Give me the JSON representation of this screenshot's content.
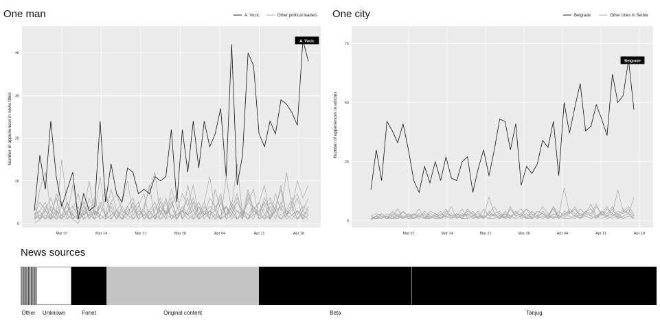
{
  "chart_data": [
    {
      "type": "line",
      "title": "One man",
      "xlabel": "",
      "ylabel": "Number of apperiences in news titles",
      "ylim": [
        0,
        45
      ],
      "yticks": [
        0,
        10,
        20,
        30,
        40
      ],
      "xticks": [
        "Mar 07",
        "Mar 14",
        "Mar 21",
        "Mar 28",
        "Apr 04",
        "Apr 11",
        "Apr 18"
      ],
      "legend": [
        "A. Vucic",
        "Other political leaders"
      ],
      "highlight_label": "A. Vucic",
      "series": [
        {
          "name": "A. Vucic",
          "values": [
            3,
            16,
            8,
            24,
            11,
            4,
            8,
            12,
            1,
            7,
            3,
            4,
            24,
            5,
            14,
            7,
            5,
            13,
            12,
            7,
            8,
            7,
            11,
            10,
            11,
            22,
            5,
            22,
            12,
            24,
            13,
            24,
            18,
            21,
            27,
            11,
            42,
            9,
            16,
            40,
            37,
            21,
            18,
            24,
            21,
            29,
            28,
            26,
            23,
            43,
            38
          ]
        },
        {
          "name": "Other political leaders",
          "values": [
            1,
            8,
            12,
            3,
            2,
            15,
            4,
            1,
            0,
            3,
            10,
            2,
            11,
            1,
            5,
            7,
            3,
            2,
            5,
            1,
            4,
            8,
            12,
            2,
            6,
            1,
            3,
            7,
            4,
            9,
            2,
            5,
            11,
            3,
            6,
            1,
            4,
            14,
            2,
            8,
            3,
            5,
            9,
            1,
            7,
            3,
            12,
            4,
            10,
            6,
            9
          ]
        },
        {
          "name": "Other political leaders",
          "values": [
            2,
            3,
            5,
            1,
            7,
            4,
            2,
            9,
            3,
            1,
            6,
            2,
            4,
            8,
            1,
            3,
            5,
            10,
            2,
            4,
            7,
            1,
            3,
            6,
            2,
            8,
            4,
            1,
            9,
            3,
            5,
            2,
            6,
            4,
            1,
            11,
            3,
            7,
            2,
            5,
            8,
            1,
            4,
            6,
            3,
            9,
            2,
            5,
            7,
            3,
            6
          ]
        },
        {
          "name": "Other political leaders",
          "values": [
            4,
            1,
            3,
            6,
            2,
            5,
            1,
            3,
            7,
            2,
            4,
            1,
            5,
            2,
            8,
            3,
            1,
            4,
            6,
            2,
            3,
            9,
            1,
            5,
            2,
            4,
            7,
            1,
            3,
            6,
            2,
            5,
            1,
            8,
            3,
            4,
            2,
            6,
            1,
            7,
            3,
            2,
            5,
            1,
            4,
            8,
            2,
            3,
            6,
            1,
            4
          ]
        },
        {
          "name": "Other political leaders",
          "values": [
            1,
            2,
            1,
            4,
            3,
            1,
            5,
            2,
            1,
            3,
            2,
            6,
            1,
            2,
            4,
            1,
            3,
            2,
            5,
            1,
            2,
            3,
            1,
            4,
            2,
            6,
            1,
            3,
            2,
            5,
            1,
            4,
            2,
            3,
            7,
            1,
            2,
            5,
            3,
            1,
            4,
            2,
            6,
            3,
            1,
            5,
            2,
            4,
            1,
            3,
            2
          ]
        },
        {
          "name": "Other political leaders",
          "values": [
            2,
            5,
            3,
            2,
            6,
            1,
            3,
            4,
            2,
            5,
            1,
            3,
            2,
            6,
            3,
            1,
            4,
            2,
            3,
            5,
            1,
            2,
            4,
            3,
            1,
            5,
            2,
            3,
            6,
            1,
            4,
            2,
            3,
            1,
            5,
            2,
            4,
            3,
            1,
            6,
            2,
            3,
            5,
            1,
            4,
            2,
            3,
            6,
            2,
            4,
            3
          ]
        },
        {
          "name": "Other political leaders",
          "values": [
            0,
            1,
            2,
            1,
            3,
            2,
            1,
            2,
            4,
            1,
            2,
            3,
            1,
            2,
            1,
            3,
            2,
            4,
            1,
            2,
            3,
            1,
            2,
            1,
            3,
            2,
            1,
            4,
            2,
            3,
            1,
            2,
            3,
            1,
            2,
            4,
            1,
            3,
            2,
            1,
            2,
            3,
            1,
            4,
            2,
            1,
            3,
            2,
            1,
            2,
            3
          ]
        },
        {
          "name": "Other political leaders",
          "values": [
            1,
            3,
            1,
            2,
            1,
            4,
            2,
            1,
            3,
            1,
            2,
            1,
            4,
            2,
            1,
            3,
            2,
            1,
            2,
            4,
            1,
            3,
            1,
            2,
            5,
            1,
            2,
            3,
            1,
            2,
            4,
            1,
            3,
            2,
            1,
            4,
            2,
            1,
            3,
            2,
            1,
            5,
            2,
            1,
            3,
            4,
            1,
            2,
            3,
            1,
            2
          ]
        },
        {
          "name": "Other political leaders",
          "values": [
            2,
            1,
            4,
            3,
            1,
            2,
            5,
            1,
            2,
            4,
            1,
            3,
            2,
            1,
            5,
            2,
            1,
            3,
            4,
            1,
            2,
            3,
            5,
            1,
            2,
            4,
            1,
            3,
            2,
            5,
            1,
            2,
            4,
            3,
            1,
            2,
            5,
            1,
            3,
            2,
            4,
            1,
            2,
            5,
            3,
            1,
            2,
            4,
            1,
            3,
            2
          ]
        },
        {
          "name": "Other political leaders",
          "values": [
            1,
            2,
            3,
            1,
            2,
            1,
            3,
            2,
            1,
            2,
            3,
            1,
            2,
            1,
            2,
            3,
            1,
            2,
            1,
            3,
            2,
            1,
            2,
            3,
            1,
            2,
            1,
            3,
            2,
            1,
            2,
            3,
            1,
            2,
            1,
            2,
            3,
            1,
            2,
            1,
            3,
            2,
            1,
            2,
            3,
            1,
            2,
            1,
            3,
            2,
            1
          ]
        }
      ]
    },
    {
      "type": "line",
      "title": "One city",
      "xlabel": "",
      "ylabel": "Number of apperiences in articles",
      "ylim": [
        0,
        80
      ],
      "yticks": [
        0,
        25,
        50,
        75
      ],
      "xticks": [
        "Mar 07",
        "Mar 14",
        "Mar 21",
        "Mar 28",
        "Apr 04",
        "Apr 11",
        "Apr 18"
      ],
      "legend": [
        "Belgrade",
        "Other cities in Serbia"
      ],
      "highlight_label": "Belgrade",
      "series": [
        {
          "name": "Belgrade",
          "values": [
            13,
            30,
            17,
            42,
            38,
            33,
            41,
            30,
            17,
            12,
            23,
            16,
            25,
            17,
            27,
            18,
            17,
            25,
            27,
            12,
            22,
            30,
            19,
            30,
            43,
            42,
            30,
            41,
            15,
            23,
            20,
            24,
            34,
            31,
            42,
            19,
            50,
            37,
            48,
            58,
            38,
            40,
            49,
            43,
            36,
            62,
            50,
            53,
            68,
            47
          ]
        },
        {
          "name": "Other cities in Serbia",
          "values": [
            1,
            2,
            1,
            3,
            2,
            1,
            4,
            2,
            1,
            3,
            2,
            1,
            2,
            4,
            1,
            3,
            2,
            5,
            1,
            2,
            3,
            1,
            4,
            2,
            3,
            1,
            5,
            2,
            3,
            1,
            4,
            2,
            6,
            3,
            1,
            4,
            2,
            5,
            3,
            1,
            4,
            2,
            6,
            3,
            2,
            5,
            1,
            4,
            3,
            2
          ]
        },
        {
          "name": "Other cities in Serbia",
          "values": [
            2,
            1,
            3,
            1,
            4,
            2,
            1,
            3,
            2,
            5,
            1,
            3,
            2,
            1,
            4,
            2,
            3,
            1,
            5,
            2,
            4,
            1,
            3,
            6,
            2,
            3,
            1,
            4,
            2,
            5,
            3,
            1,
            4,
            2,
            6,
            1,
            3,
            4,
            2,
            5,
            3,
            7,
            2,
            4,
            3,
            6,
            2,
            5,
            3,
            10
          ]
        },
        {
          "name": "Other cities in Serbia",
          "values": [
            1,
            1,
            2,
            1,
            1,
            2,
            1,
            3,
            1,
            2,
            1,
            1,
            3,
            1,
            2,
            1,
            2,
            1,
            3,
            1,
            2,
            2,
            1,
            3,
            1,
            2,
            1,
            4,
            1,
            2,
            3,
            1,
            2,
            1,
            3,
            2,
            1,
            4,
            2,
            1,
            3,
            2,
            1,
            4,
            2,
            3,
            1,
            2,
            3,
            1
          ]
        },
        {
          "name": "Other cities in Serbia",
          "values": [
            0,
            2,
            3,
            1,
            2,
            5,
            1,
            2,
            3,
            1,
            4,
            2,
            1,
            3,
            2,
            6,
            1,
            3,
            2,
            4,
            1,
            2,
            10,
            3,
            1,
            4,
            2,
            3,
            5,
            1,
            2,
            4,
            3,
            1,
            6,
            2,
            14,
            3,
            5,
            2,
            4,
            3,
            7,
            2,
            5,
            3,
            13,
            4,
            6,
            3
          ]
        },
        {
          "name": "Other cities in Serbia",
          "values": [
            1,
            1,
            1,
            2,
            1,
            1,
            2,
            1,
            1,
            2,
            1,
            2,
            1,
            1,
            2,
            1,
            2,
            1,
            1,
            2,
            1,
            2,
            1,
            1,
            2,
            1,
            2,
            1,
            2,
            1,
            1,
            2,
            1,
            2,
            1,
            2,
            1,
            1,
            2,
            1,
            2,
            1,
            2,
            1,
            2,
            1,
            2,
            1,
            2,
            1
          ]
        },
        {
          "name": "Other cities in Serbia",
          "values": [
            2,
            3,
            2,
            1,
            3,
            2,
            4,
            1,
            3,
            2,
            1,
            4,
            3,
            2,
            5,
            1,
            3,
            2,
            4,
            3,
            1,
            5,
            2,
            3,
            4,
            1,
            6,
            2,
            3,
            5,
            1,
            4,
            3,
            2,
            5,
            1,
            4,
            3,
            6,
            2,
            4,
            5,
            1,
            3,
            6,
            2,
            4,
            3,
            5,
            2
          ]
        },
        {
          "name": "Other cities in Serbia",
          "values": [
            1,
            2,
            1,
            2,
            1,
            3,
            1,
            2,
            1,
            2,
            3,
            1,
            2,
            1,
            3,
            2,
            1,
            2,
            3,
            1,
            2,
            1,
            3,
            2,
            1,
            3,
            2,
            1,
            2,
            3,
            1,
            2,
            3,
            1,
            2,
            1,
            3,
            2,
            1,
            3,
            2,
            1,
            2,
            3,
            1,
            2,
            3,
            1,
            2,
            1
          ]
        }
      ]
    },
    {
      "type": "bar",
      "title": "News sources",
      "categories": [
        "Other",
        "Unknown",
        "Fonet",
        "Original content",
        "Beta",
        "Tanjug"
      ],
      "values": [
        2.5,
        5.5,
        5.5,
        24,
        24,
        38.5
      ],
      "colors": [
        "#999999",
        "#ffffff",
        "#000000",
        "#c4c4c4",
        "#000000",
        "#000000"
      ]
    }
  ]
}
